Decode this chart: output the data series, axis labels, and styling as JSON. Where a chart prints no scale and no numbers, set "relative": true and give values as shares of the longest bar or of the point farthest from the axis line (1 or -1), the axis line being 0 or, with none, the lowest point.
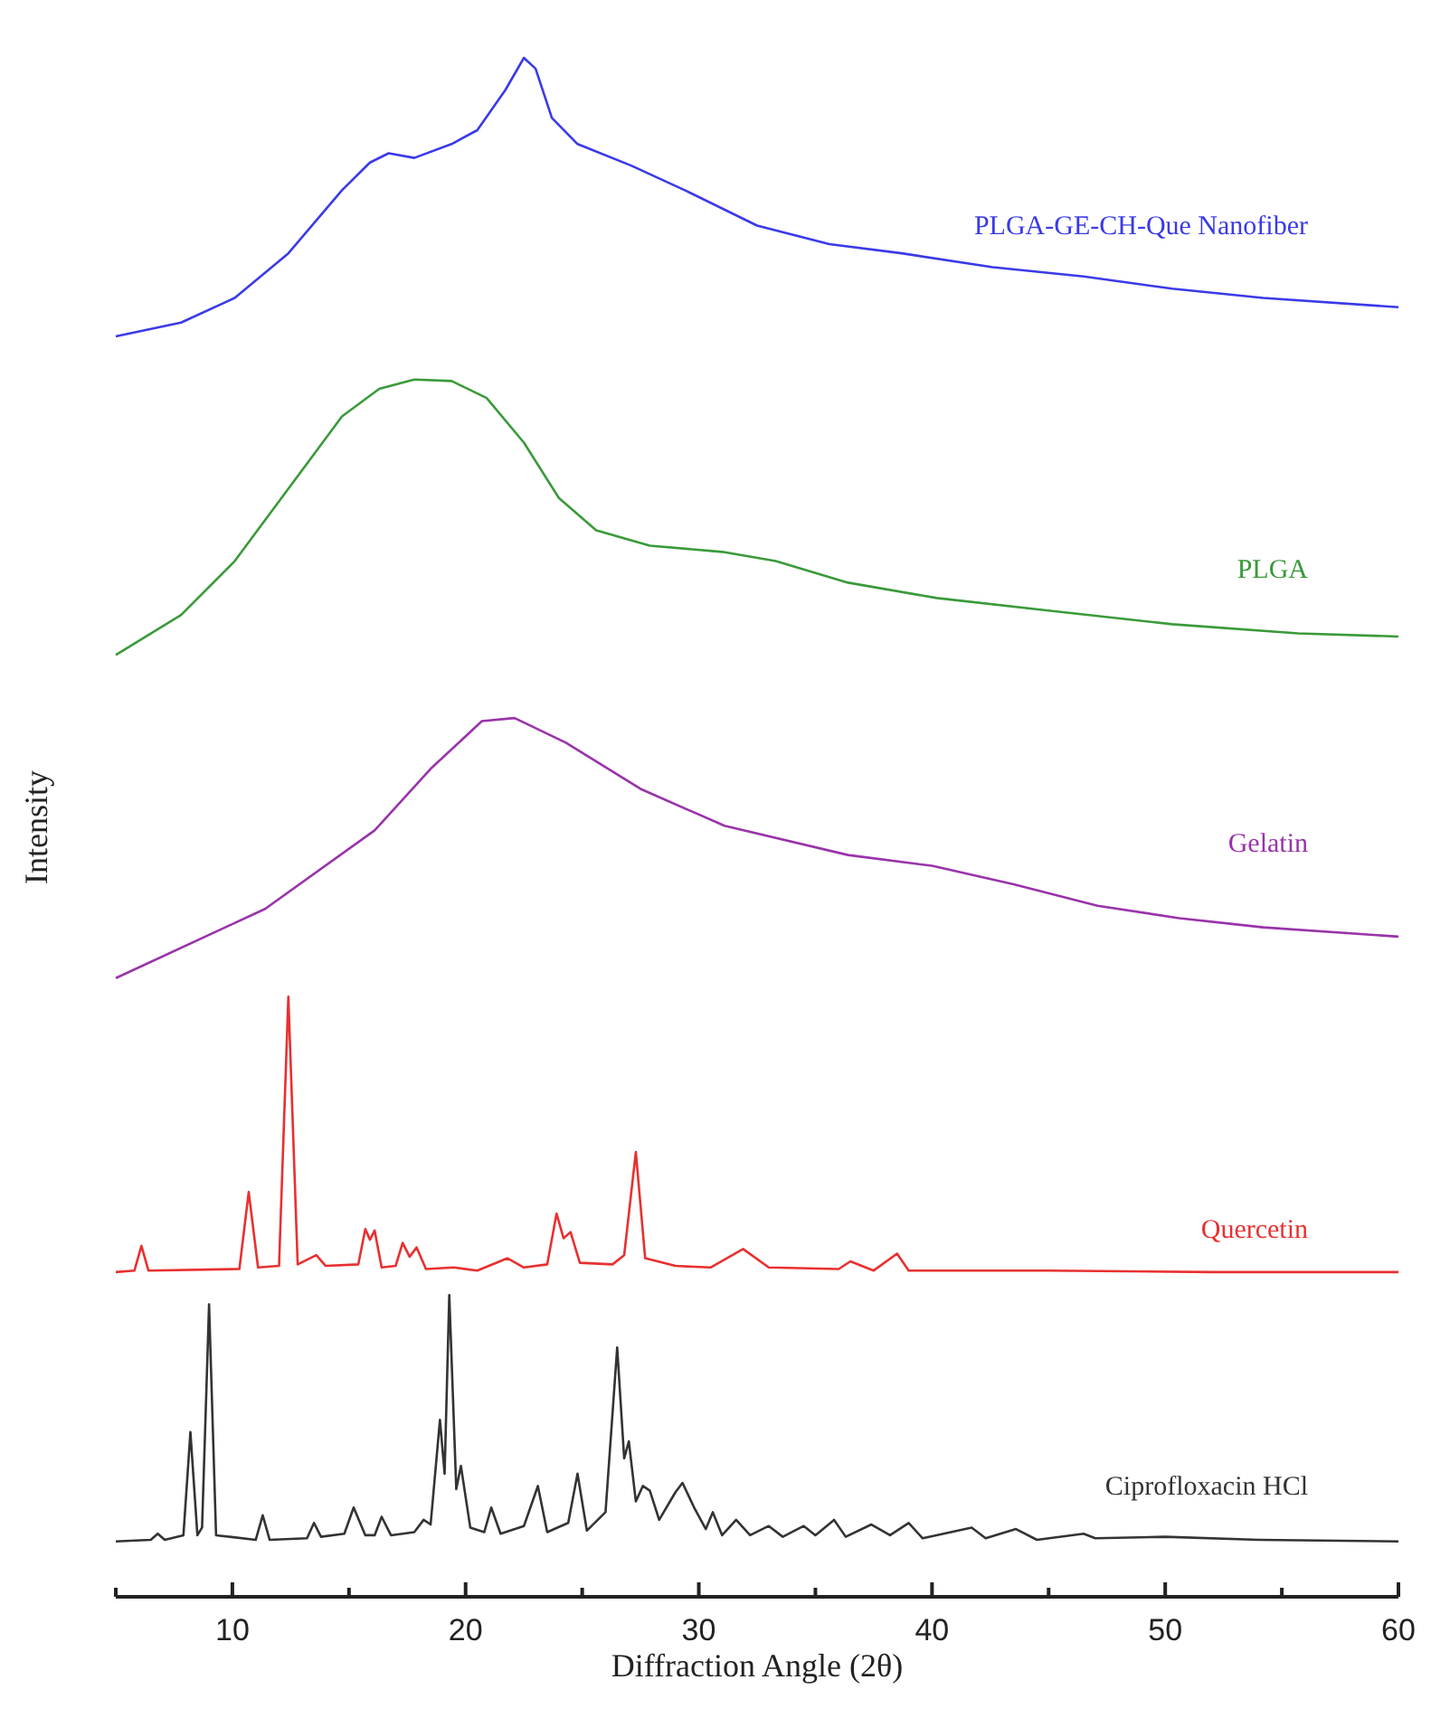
{
  "chart_data": {
    "type": "line",
    "relative": true,
    "xlabel": "Diffraction Angle (2θ)",
    "ylabel": "Intensity",
    "xlim": [
      5,
      60
    ],
    "xticks": [
      {
        "value": 5,
        "label": null
      },
      10,
      {
        "value": 15,
        "label": null
      },
      20,
      {
        "value": 25,
        "label": null
      },
      30,
      {
        "value": 35,
        "label": null
      },
      40,
      {
        "value": 45,
        "label": null
      },
      50,
      {
        "value": 55,
        "label": null
      },
      60
    ],
    "tick_labels": "x",
    "grid": false,
    "marker": "none",
    "line_style": "solid",
    "series": [
      {
        "name": "PLGA-GE-CH-Que Nanofiber",
        "color": "#3a3ae8",
        "x": [
          5.0,
          7.8,
          10.1,
          12.4,
          14.7,
          15.9,
          16.7,
          17.8,
          19.4,
          20.5,
          21.7,
          22.5,
          23.0,
          23.7,
          24.8,
          27.1,
          29.4,
          32.5,
          35.6,
          38.7,
          42.6,
          46.5,
          50.3,
          54.2,
          60
        ],
        "values": [
          0.819,
          0.828,
          0.844,
          0.873,
          0.914,
          0.932,
          0.938,
          0.935,
          0.944,
          0.953,
          0.979,
          1.0,
          0.993,
          0.961,
          0.944,
          0.93,
          0.914,
          0.891,
          0.879,
          0.873,
          0.864,
          0.858,
          0.85,
          0.844,
          0.838
        ]
      },
      {
        "name": "PLGA",
        "color": "#3a9a3a",
        "x": [
          5.0,
          7.8,
          10.1,
          12.4,
          14.7,
          16.3,
          17.8,
          19.4,
          20.9,
          22.5,
          24.0,
          25.6,
          27.9,
          31.0,
          33.3,
          36.4,
          40.2,
          44.9,
          50.3,
          55.7,
          60
        ],
        "values": [
          0.612,
          0.638,
          0.673,
          0.72,
          0.767,
          0.785,
          0.791,
          0.79,
          0.779,
          0.75,
          0.714,
          0.693,
          0.683,
          0.679,
          0.673,
          0.659,
          0.649,
          0.641,
          0.632,
          0.626,
          0.624
        ]
      },
      {
        "name": "Gelatin",
        "color": "#9933aa",
        "x": [
          5.0,
          11.4,
          16.1,
          18.5,
          20.7,
          22.1,
          24.3,
          27.5,
          31.1,
          36.4,
          40.0,
          43.5,
          47.1,
          50.6,
          54.2,
          60
        ],
        "values": [
          0.402,
          0.447,
          0.498,
          0.538,
          0.569,
          0.571,
          0.555,
          0.525,
          0.501,
          0.482,
          0.475,
          0.463,
          0.449,
          0.441,
          0.435,
          0.429
        ]
      },
      {
        "name": "Quercetin",
        "color": "#e83030",
        "x": [
          5.0,
          5.8,
          6.1,
          6.4,
          10.3,
          10.7,
          11.1,
          12.0,
          12.4,
          12.8,
          13.6,
          14.0,
          15.4,
          15.7,
          15.9,
          16.1,
          16.4,
          17.0,
          17.3,
          17.6,
          17.9,
          18.3,
          19.5,
          20.5,
          21.8,
          22.5,
          23.5,
          23.9,
          24.2,
          24.5,
          24.9,
          26.3,
          26.8,
          27.3,
          27.7,
          29.0,
          30.5,
          31.9,
          33.0,
          36.0,
          36.5,
          37.5,
          38.5,
          39.0,
          45,
          52,
          60
        ],
        "values": [
          0.211,
          0.212,
          0.228,
          0.212,
          0.213,
          0.263,
          0.214,
          0.215,
          0.39,
          0.216,
          0.222,
          0.215,
          0.216,
          0.239,
          0.232,
          0.238,
          0.214,
          0.215,
          0.23,
          0.221,
          0.227,
          0.213,
          0.214,
          0.212,
          0.22,
          0.214,
          0.216,
          0.249,
          0.233,
          0.237,
          0.217,
          0.216,
          0.222,
          0.289,
          0.22,
          0.215,
          0.214,
          0.226,
          0.214,
          0.213,
          0.218,
          0.212,
          0.223,
          0.212,
          0.212,
          0.211,
          0.211
        ]
      },
      {
        "name": "Ciprofloxacin HCl",
        "color": "#333333",
        "x": [
          5.0,
          6.5,
          6.8,
          7.1,
          7.9,
          8.2,
          8.5,
          8.7,
          9.0,
          9.3,
          11.0,
          11.3,
          11.6,
          13.2,
          13.5,
          13.8,
          14.8,
          15.2,
          15.7,
          16.1,
          16.4,
          16.8,
          17.8,
          18.2,
          18.5,
          18.9,
          19.1,
          19.3,
          19.6,
          19.8,
          20.2,
          20.8,
          21.1,
          21.5,
          22.5,
          23.1,
          23.5,
          24.4,
          24.8,
          25.2,
          26.0,
          26.5,
          26.8,
          27.0,
          27.3,
          27.6,
          27.9,
          28.3,
          29.0,
          29.3,
          29.8,
          30.3,
          30.6,
          31.0,
          31.6,
          32.2,
          33.0,
          33.6,
          34.5,
          35.0,
          35.8,
          36.3,
          37.4,
          38.2,
          39.0,
          39.6,
          41.7,
          42.3,
          43.6,
          44.5,
          46.5,
          47.0,
          50.0,
          54.0,
          60.0
        ],
        "values": [
          0.036,
          0.037,
          0.041,
          0.037,
          0.04,
          0.107,
          0.04,
          0.045,
          0.19,
          0.04,
          0.037,
          0.053,
          0.037,
          0.038,
          0.048,
          0.039,
          0.041,
          0.058,
          0.04,
          0.04,
          0.052,
          0.04,
          0.042,
          0.05,
          0.047,
          0.115,
          0.08,
          0.196,
          0.07,
          0.085,
          0.045,
          0.042,
          0.058,
          0.041,
          0.046,
          0.072,
          0.042,
          0.048,
          0.08,
          0.043,
          0.055,
          0.162,
          0.09,
          0.101,
          0.062,
          0.072,
          0.069,
          0.05,
          0.068,
          0.074,
          0.058,
          0.044,
          0.055,
          0.04,
          0.05,
          0.04,
          0.046,
          0.039,
          0.046,
          0.04,
          0.05,
          0.039,
          0.047,
          0.04,
          0.048,
          0.038,
          0.045,
          0.038,
          0.044,
          0.037,
          0.041,
          0.038,
          0.039,
          0.037,
          0.036
        ]
      }
    ]
  }
}
